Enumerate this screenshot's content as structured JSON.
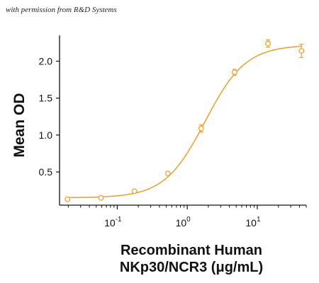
{
  "caption": "with permission from R&D Systems",
  "chart_data": {
    "type": "scatter",
    "xscale": "log",
    "xlim": [
      0.015,
      50
    ],
    "ylim": [
      0.05,
      2.35
    ],
    "xticks": [
      {
        "value": 0.1,
        "base": "10",
        "exp": "-1"
      },
      {
        "value": 1,
        "base": "10",
        "exp": "0"
      },
      {
        "value": 10,
        "base": "10",
        "exp": "1"
      }
    ],
    "yticks": [
      {
        "value": 0.5,
        "label": "0.5"
      },
      {
        "value": 1.0,
        "label": "1.0"
      },
      {
        "value": 1.5,
        "label": "1.5"
      },
      {
        "value": 2.0,
        "label": "2.0"
      }
    ],
    "ylabel": "Mean OD",
    "xlabel_line1": "Recombinant Human",
    "xlabel_line2": "NKp30/NCR3 (μg/mL)",
    "color": "#E8A33A",
    "series": [
      {
        "x": [
          0.0195,
          0.0586,
          0.176,
          0.527,
          1.58,
          4.74,
          14.2,
          42.7
        ],
        "y": [
          0.13,
          0.15,
          0.24,
          0.48,
          1.09,
          1.85,
          2.24,
          2.14
        ],
        "err": [
          0.02,
          0.02,
          0.02,
          0.02,
          0.05,
          0.04,
          0.05,
          0.09
        ]
      }
    ],
    "fit": {
      "bottom": 0.15,
      "top": 2.22,
      "ec50": 1.8,
      "hill": 1.5
    }
  }
}
